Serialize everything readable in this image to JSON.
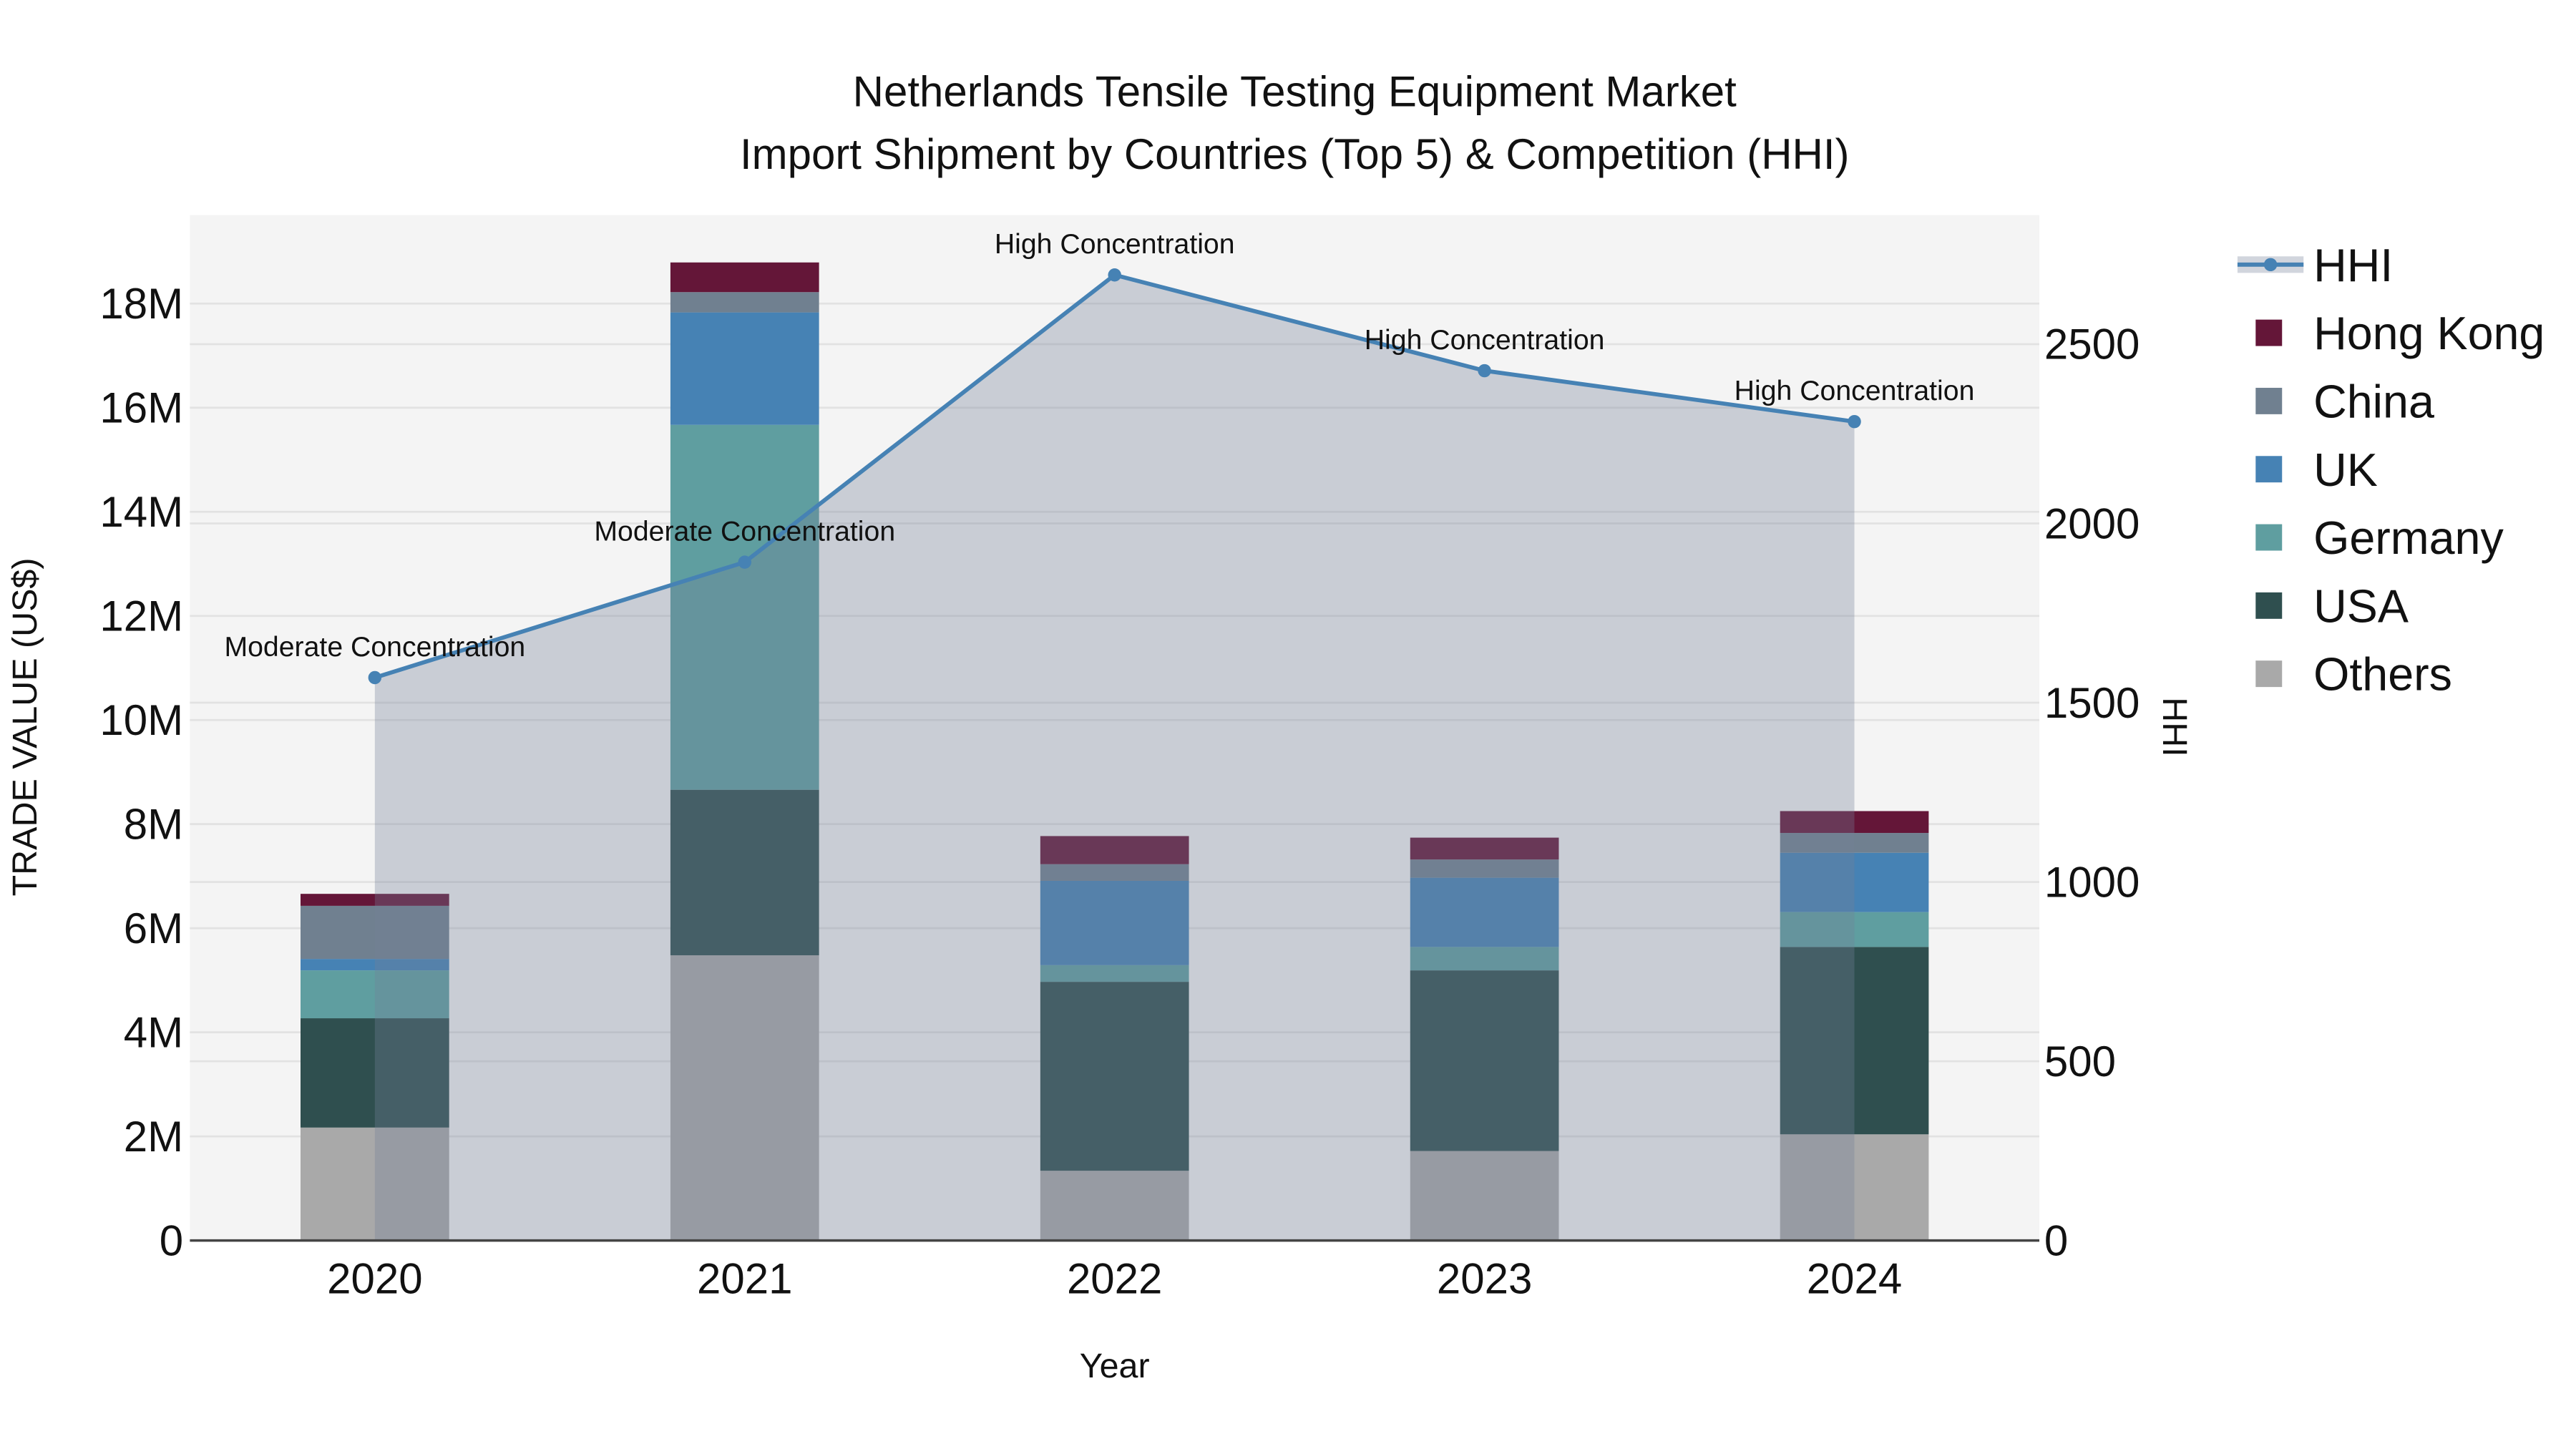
{
  "chart_data": {
    "type": "bar",
    "title_line1": "Netherlands Tensile Testing Equipment Market",
    "title_line2": "Import Shipment by Countries (Top 5) & Competition (HHI)",
    "xlabel": "Year",
    "ylabel": "TRADE VALUE (US$)",
    "y2label": "HHI",
    "categories": [
      "2020",
      "2021",
      "2022",
      "2023",
      "2024"
    ],
    "ylim": [
      0,
      19700000
    ],
    "y2lim": [
      0,
      2860
    ],
    "yticks": [
      {
        "v": 0,
        "label": "0"
      },
      {
        "v": 2000000,
        "label": "2M"
      },
      {
        "v": 4000000,
        "label": "4M"
      },
      {
        "v": 6000000,
        "label": "6M"
      },
      {
        "v": 8000000,
        "label": "8M"
      },
      {
        "v": 10000000,
        "label": "10M"
      },
      {
        "v": 12000000,
        "label": "12M"
      },
      {
        "v": 14000000,
        "label": "14M"
      },
      {
        "v": 16000000,
        "label": "16M"
      },
      {
        "v": 18000000,
        "label": "18M"
      }
    ],
    "y2ticks": [
      {
        "v": 0,
        "label": "0"
      },
      {
        "v": 500,
        "label": "500"
      },
      {
        "v": 1000,
        "label": "1000"
      },
      {
        "v": 1500,
        "label": "1500"
      },
      {
        "v": 2000,
        "label": "2000"
      },
      {
        "v": 2500,
        "label": "2500"
      }
    ],
    "stack_order": [
      "Others",
      "USA",
      "Germany",
      "UK",
      "China",
      "Hong Kong"
    ],
    "series": [
      {
        "name": "Others",
        "color": "#A9A9A9",
        "values": [
          2170000,
          5480000,
          1340000,
          1720000,
          2040000
        ]
      },
      {
        "name": "USA",
        "color": "#2F4F4F",
        "values": [
          2100000,
          3180000,
          3630000,
          3470000,
          3600000
        ]
      },
      {
        "name": "Germany",
        "color": "#5F9EA0",
        "values": [
          920000,
          7010000,
          320000,
          450000,
          670000
        ]
      },
      {
        "name": "UK",
        "color": "#4682B4",
        "values": [
          220000,
          2160000,
          1620000,
          1330000,
          1140000
        ]
      },
      {
        "name": "China",
        "color": "#708090",
        "values": [
          1020000,
          390000,
          320000,
          350000,
          380000
        ]
      },
      {
        "name": "Hong Kong",
        "color": "#641638",
        "values": [
          230000,
          570000,
          540000,
          420000,
          420000
        ]
      }
    ],
    "hhi": {
      "name": "HHI",
      "color": "#4682B4",
      "values": [
        1570,
        1892,
        2693,
        2426,
        2284
      ],
      "annotations": [
        "Moderate Concentration",
        "Moderate Concentration",
        "High Concentration",
        "High Concentration",
        "High Concentration"
      ]
    },
    "legend": [
      "HHI",
      "Hong Kong",
      "China",
      "UK",
      "Germany",
      "USA",
      "Others"
    ],
    "legend_placement": "right",
    "grid": true
  }
}
